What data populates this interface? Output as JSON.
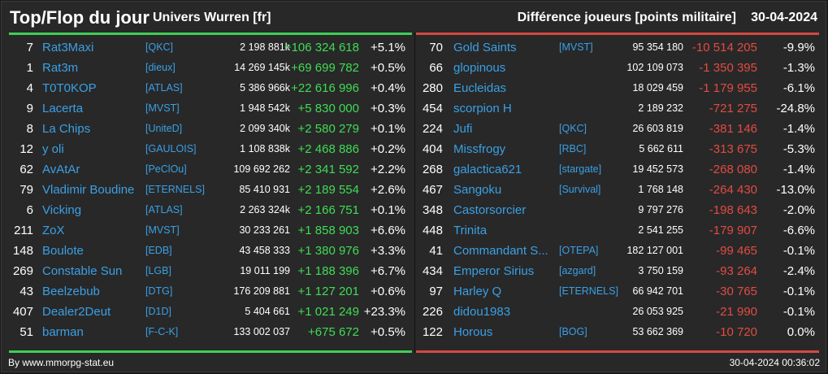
{
  "header": {
    "title": "Top/Flop du jour",
    "universe": "Univers Wurren [fr]",
    "metric": "Différence joueurs [points militaire]",
    "date": "30-04-2024"
  },
  "colors": {
    "positive": "#3fdc55",
    "negative": "#e24b42",
    "link": "#3aa0e6"
  },
  "top": [
    {
      "rank": "7",
      "name": "Rat3Maxi",
      "alliance": "[QKC]",
      "points": "2 198 881k",
      "diff": "+106 324 618",
      "pct": "+5.1%"
    },
    {
      "rank": "1",
      "name": "Rat3m",
      "alliance": "[dieux]",
      "points": "14 269 145k",
      "diff": "+69 699 782",
      "pct": "+0.5%"
    },
    {
      "rank": "4",
      "name": "T0T0KOP",
      "alliance": "[ATLAS]",
      "points": "5 386 966k",
      "diff": "+22 616 996",
      "pct": "+0.4%"
    },
    {
      "rank": "9",
      "name": "Lacerta",
      "alliance": "[MVST]",
      "points": "1 948 542k",
      "diff": "+5 830 000",
      "pct": "+0.3%"
    },
    {
      "rank": "8",
      "name": "La Chips",
      "alliance": "[UniteD]",
      "points": "2 099 340k",
      "diff": "+2 580 279",
      "pct": "+0.1%"
    },
    {
      "rank": "12",
      "name": "y oli",
      "alliance": "[GAULOIS]",
      "points": "1 108 838k",
      "diff": "+2 468 886",
      "pct": "+0.2%"
    },
    {
      "rank": "62",
      "name": "AvAtAr",
      "alliance": "[PeClOu]",
      "points": "109 692 262",
      "diff": "+2 341 592",
      "pct": "+2.2%"
    },
    {
      "rank": "79",
      "name": "Vladimir Boudine",
      "alliance": "[ETERNELS]",
      "points": "85 410 931",
      "diff": "+2 189 554",
      "pct": "+2.6%"
    },
    {
      "rank": "6",
      "name": "Vicking",
      "alliance": "[ATLAS]",
      "points": "2 263 324k",
      "diff": "+2 166 751",
      "pct": "+0.1%"
    },
    {
      "rank": "211",
      "name": "ZoX",
      "alliance": "[MVST]",
      "points": "30 233 261",
      "diff": "+1 858 903",
      "pct": "+6.6%"
    },
    {
      "rank": "148",
      "name": "Boulote",
      "alliance": "[EDB]",
      "points": "43 458 333",
      "diff": "+1 380 976",
      "pct": "+3.3%"
    },
    {
      "rank": "269",
      "name": "Constable Sun",
      "alliance": "[LGB]",
      "points": "19 011 199",
      "diff": "+1 188 396",
      "pct": "+6.7%"
    },
    {
      "rank": "43",
      "name": "Beelzebub",
      "alliance": "[DTG]",
      "points": "176 209 881",
      "diff": "+1 127 201",
      "pct": "+0.6%"
    },
    {
      "rank": "407",
      "name": "Dealer2Deut",
      "alliance": "[D1D]",
      "points": "5 404 661",
      "diff": "+1 021 249",
      "pct": "+23.3%"
    },
    {
      "rank": "51",
      "name": "barman",
      "alliance": "[F-C-K]",
      "points": "133 002 037",
      "diff": "+675 672",
      "pct": "+0.5%"
    }
  ],
  "flop": [
    {
      "rank": "70",
      "name": "Gold Saints",
      "alliance": "[MVST]",
      "points": "95 354 180",
      "diff": "-10 514 205",
      "pct": "-9.9%"
    },
    {
      "rank": "66",
      "name": "glopinous",
      "alliance": "",
      "points": "102 109 073",
      "diff": "-1 350 395",
      "pct": "-1.3%"
    },
    {
      "rank": "280",
      "name": "Eucleidas",
      "alliance": "",
      "points": "18 029 459",
      "diff": "-1 179 955",
      "pct": "-6.1%"
    },
    {
      "rank": "454",
      "name": "scorpion H",
      "alliance": "",
      "points": "2 189 232",
      "diff": "-721 275",
      "pct": "-24.8%"
    },
    {
      "rank": "224",
      "name": "Jufi",
      "alliance": "[QKC]",
      "points": "26 603 819",
      "diff": "-381 146",
      "pct": "-1.4%"
    },
    {
      "rank": "404",
      "name": "Missfrogy",
      "alliance": "[RBC]",
      "points": "5 662 611",
      "diff": "-313 675",
      "pct": "-5.3%"
    },
    {
      "rank": "268",
      "name": "galactica621",
      "alliance": "[stargate]",
      "points": "19 452 573",
      "diff": "-268 080",
      "pct": "-1.4%"
    },
    {
      "rank": "467",
      "name": "Sangoku",
      "alliance": "[Survival]",
      "points": "1 768 148",
      "diff": "-264 430",
      "pct": "-13.0%"
    },
    {
      "rank": "348",
      "name": "Castorsorcier",
      "alliance": "",
      "points": "9 797 276",
      "diff": "-198 643",
      "pct": "-2.0%"
    },
    {
      "rank": "448",
      "name": "Trinita",
      "alliance": "",
      "points": "2 541 255",
      "diff": "-179 907",
      "pct": "-6.6%"
    },
    {
      "rank": "41",
      "name": "Commandant S...",
      "alliance": "[OTEPA]",
      "points": "182 127 001",
      "diff": "-99 465",
      "pct": "-0.1%"
    },
    {
      "rank": "434",
      "name": "Emperor Sirius",
      "alliance": "[azgard]",
      "points": "3 750 159",
      "diff": "-93 264",
      "pct": "-2.4%"
    },
    {
      "rank": "97",
      "name": "Harley Q",
      "alliance": "[ETERNELS]",
      "points": "66 942 701",
      "diff": "-30 765",
      "pct": "-0.1%"
    },
    {
      "rank": "226",
      "name": "didou1983",
      "alliance": "",
      "points": "26 053 925",
      "diff": "-21 990",
      "pct": "-0.1%"
    },
    {
      "rank": "122",
      "name": "Horous",
      "alliance": "[BOG]",
      "points": "53 662 369",
      "diff": "-10 720",
      "pct": "0.0%"
    }
  ],
  "footer": {
    "source": "By www.mmorpg-stat.eu",
    "timestamp": "30-04-2024 00:36:02"
  }
}
